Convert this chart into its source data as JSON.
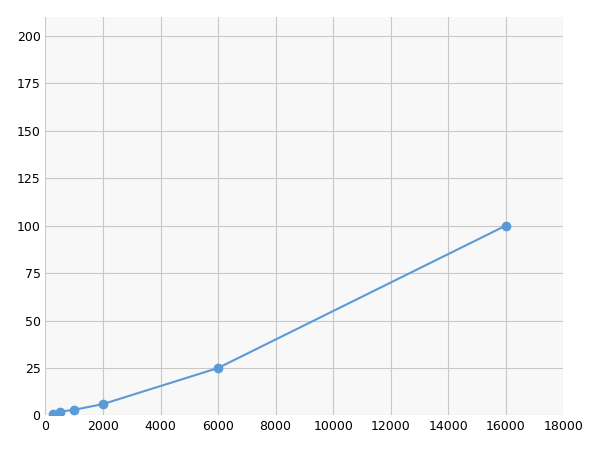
{
  "x": [
    250,
    500,
    1000,
    2000,
    6000,
    16000
  ],
  "y": [
    1,
    2,
    3,
    6,
    25,
    100
  ],
  "line_color": "#5b9bd5",
  "marker_color": "#5b9bd5",
  "marker_size": 6,
  "line_width": 1.5,
  "xlim": [
    0,
    18000
  ],
  "ylim": [
    0,
    210
  ],
  "xticks": [
    0,
    2000,
    4000,
    6000,
    8000,
    10000,
    12000,
    14000,
    16000,
    18000
  ],
  "yticks": [
    0,
    25,
    50,
    75,
    100,
    125,
    150,
    175,
    200
  ],
  "grid_color": "#c8c8c8",
  "background_color": "#f8f8f8",
  "figure_background": "#ffffff",
  "tick_fontsize": 9
}
